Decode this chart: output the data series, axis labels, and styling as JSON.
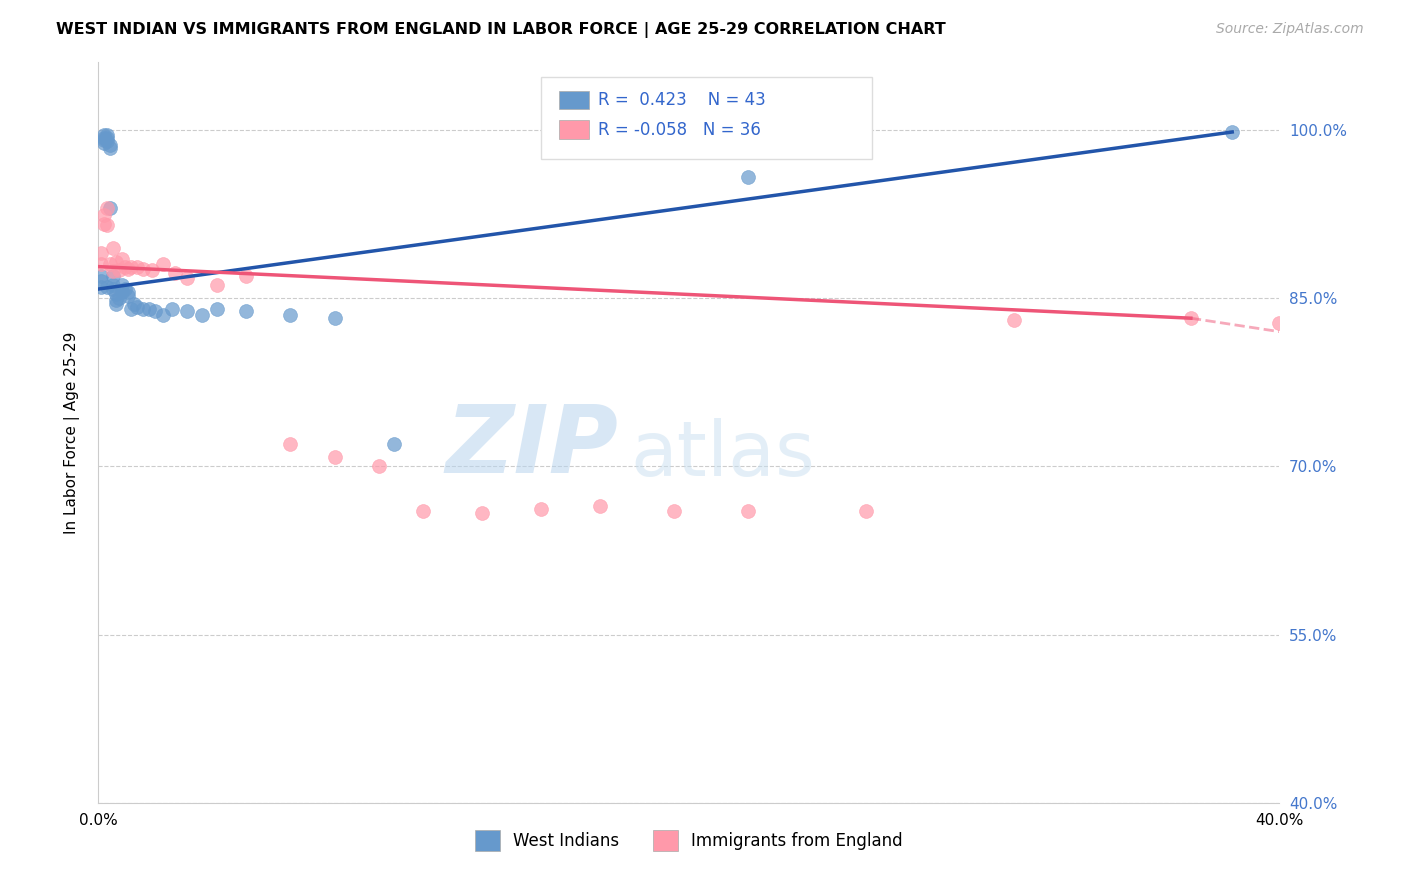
{
  "title": "WEST INDIAN VS IMMIGRANTS FROM ENGLAND IN LABOR FORCE | AGE 25-29 CORRELATION CHART",
  "source": "Source: ZipAtlas.com",
  "ylabel": "In Labor Force | Age 25-29",
  "xlim": [
    0.0,
    0.4
  ],
  "ylim": [
    0.4,
    1.06
  ],
  "yticks": [
    0.4,
    0.55,
    0.7,
    0.85,
    1.0
  ],
  "ytick_labels": [
    "40.0%",
    "55.0%",
    "70.0%",
    "85.0%",
    "100.0%"
  ],
  "xticks": [
    0.0,
    0.05,
    0.1,
    0.15,
    0.2,
    0.25,
    0.3,
    0.35,
    0.4
  ],
  "xtick_labels": [
    "0.0%",
    "",
    "",
    "",
    "",
    "",
    "",
    "",
    "40.0%"
  ],
  "blue_R": 0.423,
  "blue_N": 43,
  "pink_R": -0.058,
  "pink_N": 36,
  "blue_color": "#6699cc",
  "pink_color": "#ff99aa",
  "blue_line_color": "#2255aa",
  "pink_line_color": "#ee5577",
  "watermark_zip": "ZIP",
  "watermark_atlas": "atlas",
  "blue_x": [
    0.001,
    0.001,
    0.001,
    0.002,
    0.002,
    0.002,
    0.002,
    0.003,
    0.003,
    0.003,
    0.003,
    0.004,
    0.004,
    0.004,
    0.005,
    0.005,
    0.005,
    0.006,
    0.006,
    0.006,
    0.007,
    0.008,
    0.008,
    0.009,
    0.01,
    0.01,
    0.011,
    0.012,
    0.013,
    0.015,
    0.017,
    0.019,
    0.022,
    0.025,
    0.03,
    0.035,
    0.04,
    0.05,
    0.065,
    0.08,
    0.1,
    0.22,
    0.384
  ],
  "blue_y": [
    0.87,
    0.865,
    0.86,
    0.995,
    0.993,
    0.991,
    0.988,
    0.995,
    0.993,
    0.99,
    0.86,
    0.986,
    0.984,
    0.93,
    0.87,
    0.862,
    0.858,
    0.854,
    0.848,
    0.845,
    0.85,
    0.862,
    0.855,
    0.858,
    0.855,
    0.852,
    0.84,
    0.845,
    0.842,
    0.84,
    0.84,
    0.838,
    0.835,
    0.84,
    0.838,
    0.835,
    0.84,
    0.838,
    0.835,
    0.832,
    0.72,
    0.958,
    0.998
  ],
  "pink_x": [
    0.001,
    0.001,
    0.002,
    0.002,
    0.003,
    0.003,
    0.004,
    0.005,
    0.005,
    0.006,
    0.007,
    0.008,
    0.009,
    0.01,
    0.011,
    0.013,
    0.015,
    0.018,
    0.022,
    0.026,
    0.03,
    0.04,
    0.05,
    0.065,
    0.08,
    0.095,
    0.11,
    0.13,
    0.15,
    0.17,
    0.195,
    0.22,
    0.26,
    0.31,
    0.37,
    0.4
  ],
  "pink_y": [
    0.89,
    0.88,
    0.924,
    0.916,
    0.93,
    0.915,
    0.88,
    0.895,
    0.874,
    0.882,
    0.875,
    0.885,
    0.878,
    0.876,
    0.878,
    0.878,
    0.876,
    0.875,
    0.88,
    0.872,
    0.868,
    0.862,
    0.87,
    0.72,
    0.708,
    0.7,
    0.66,
    0.658,
    0.662,
    0.665,
    0.66,
    0.66,
    0.66,
    0.83,
    0.832,
    0.828
  ],
  "blue_line_x0": 0.0,
  "blue_line_y0": 0.858,
  "blue_line_x1": 0.384,
  "blue_line_y1": 0.998,
  "pink_line_x0": 0.0,
  "pink_line_y0": 0.878,
  "pink_line_x1_solid": 0.37,
  "pink_line_y1_solid": 0.832,
  "pink_line_x1_dash": 0.4,
  "pink_line_y1_dash": 0.82
}
